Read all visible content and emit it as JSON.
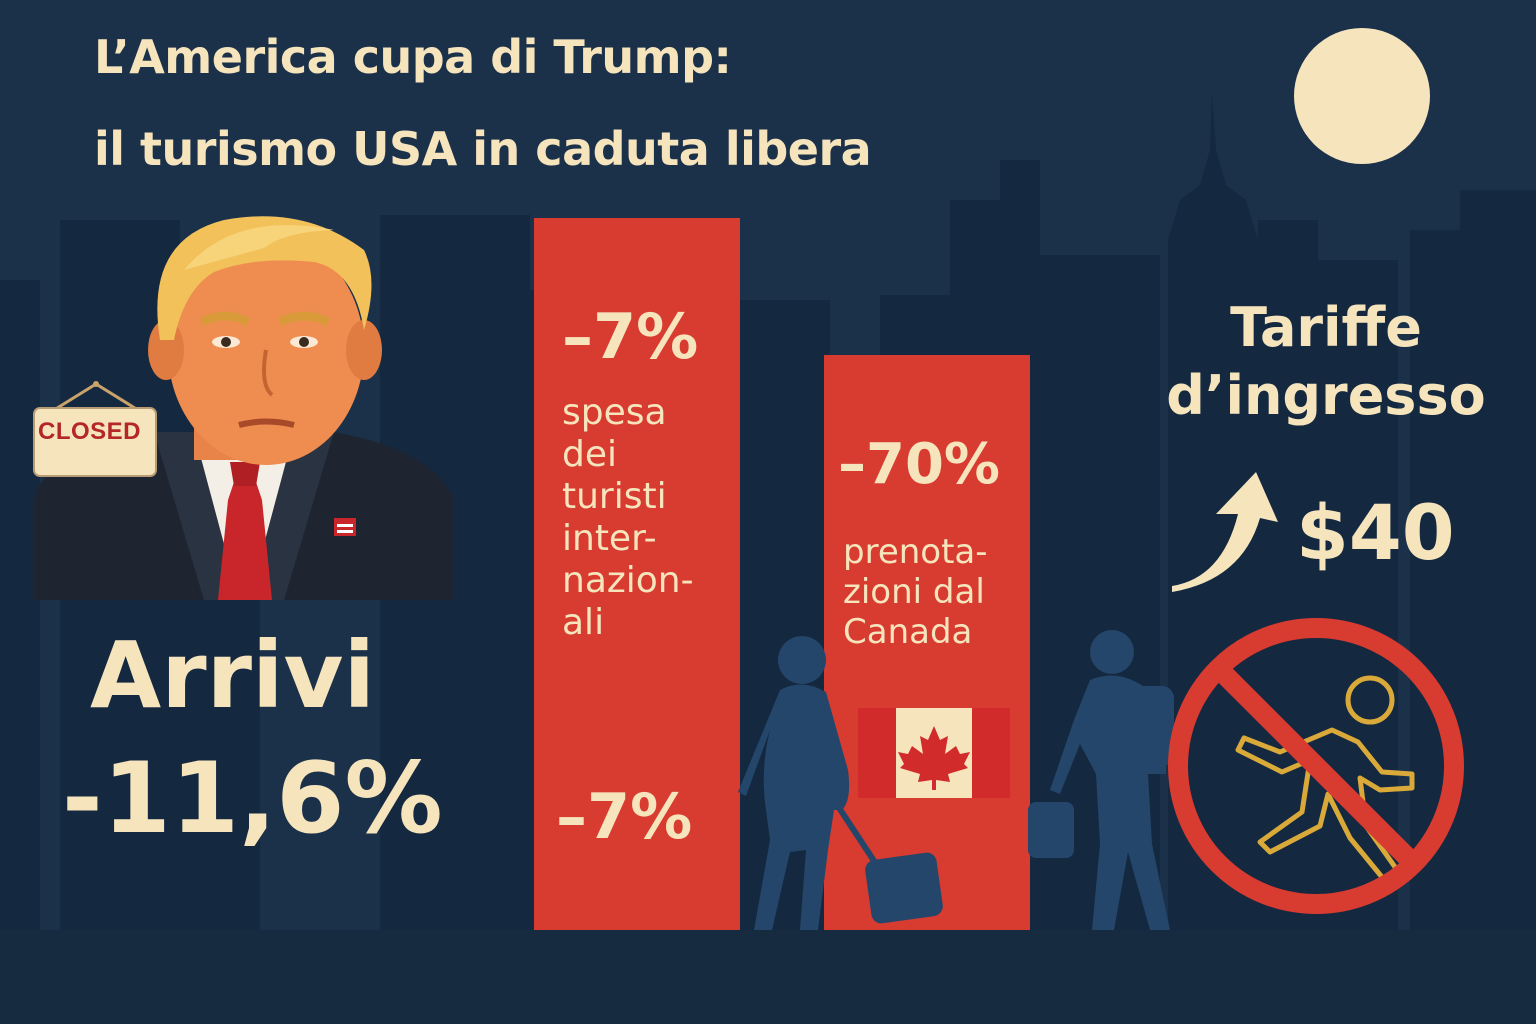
{
  "title": {
    "line1": "L’America cupa di Trump:",
    "line2": "il turismo USA in caduta libera"
  },
  "sign": {
    "text": "CLOSED"
  },
  "arrivals": {
    "label": "Arrivi",
    "value": "-11,6%"
  },
  "spending": {
    "value_top": "–7%",
    "label": "spesa\ndei\nturisti\ninter-\nnazion-\nali",
    "value_bottom": "–7%"
  },
  "canada": {
    "value": "–70%",
    "label": "prenota-\nzioni dal\nCanada"
  },
  "fees": {
    "label": "Tariffe\nd’ingresso",
    "value": "$40"
  },
  "icons": {
    "moon": "moon-icon",
    "flag": "canada-flag-icon",
    "arrow": "trend-up-arrow-icon",
    "no_entry": "no-entry-icon"
  },
  "colors": {
    "background": "#1b3049",
    "skyline": "#122338",
    "accent_red": "#d83b30",
    "text_cream": "#f6e4bd"
  }
}
